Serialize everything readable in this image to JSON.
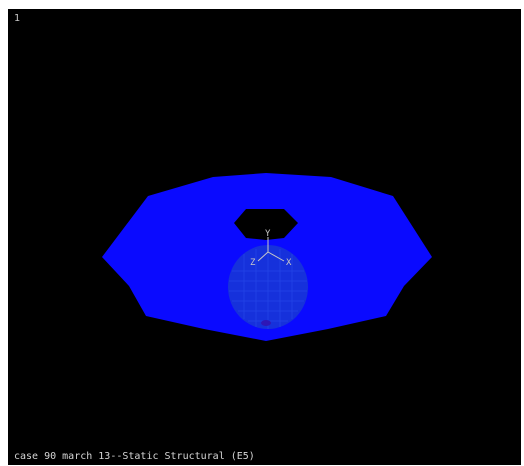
{
  "viewport": {
    "window_number": "1",
    "title": "case 90 march 13--Static Structural (E5)",
    "background_color": "#000000"
  },
  "model": {
    "shape": "annular-plate-with-central-hole",
    "face_color": "#0a0aff",
    "hidden_mesh_color": "#1a4fd6"
  },
  "triad": {
    "x_label": "X",
    "y_label": "Y",
    "z_label": "Z",
    "color": "#c8c8c8"
  }
}
